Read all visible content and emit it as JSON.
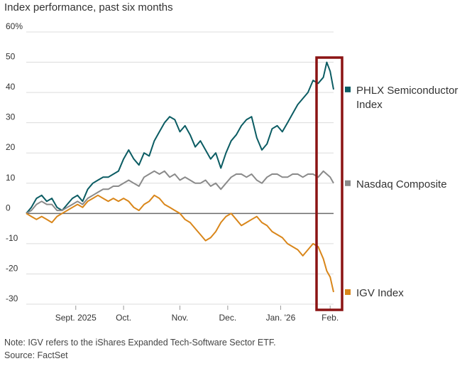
{
  "title": "Index performance, past six months",
  "note": "Note: IGV refers to the iShares Expanded Tech-Software Sector ETF.",
  "source": "Source: FactSet",
  "colors": {
    "semis": "#0b5c63",
    "nasdaq": "#8a8a8a",
    "igv": "#d9861a",
    "zero_line": "#6b6b6b",
    "gridline": "#dcdcdc",
    "highlight_box": "#8b1414"
  },
  "chart_data": {
    "type": "line",
    "ylim": [
      -30,
      60
    ],
    "yticks": [
      60,
      50,
      40,
      30,
      20,
      10,
      0,
      -10,
      -20,
      -30
    ],
    "ytick_labels": [
      "60%",
      "50",
      "40",
      "30",
      "20",
      "10",
      "0",
      "-10",
      "-20",
      "-30"
    ],
    "xlim": [
      0,
      180
    ],
    "xticks": [
      {
        "x": 29,
        "label": "Sept. 2025"
      },
      {
        "x": 57,
        "label": "Oct."
      },
      {
        "x": 90,
        "label": "Nov."
      },
      {
        "x": 118,
        "label": "Dec."
      },
      {
        "x": 149,
        "label": "Jan. '26"
      },
      {
        "x": 178,
        "label": "Feb."
      }
    ],
    "grid": "horizontal",
    "legend": "right, labels at series ends",
    "series": [
      {
        "name": "PHLX Semiconductor Index",
        "label_lines": [
          "PHLX Semiconductor",
          "Index"
        ],
        "color_key": "semis",
        "points": [
          [
            0,
            0
          ],
          [
            3,
            2
          ],
          [
            6,
            5
          ],
          [
            9,
            6
          ],
          [
            12,
            4
          ],
          [
            15,
            5
          ],
          [
            18,
            2
          ],
          [
            21,
            1
          ],
          [
            24,
            3
          ],
          [
            27,
            5
          ],
          [
            30,
            6
          ],
          [
            33,
            4
          ],
          [
            36,
            8
          ],
          [
            39,
            10
          ],
          [
            42,
            11
          ],
          [
            45,
            12
          ],
          [
            48,
            12
          ],
          [
            51,
            13
          ],
          [
            54,
            14
          ],
          [
            57,
            18
          ],
          [
            60,
            21
          ],
          [
            63,
            18
          ],
          [
            66,
            16
          ],
          [
            69,
            20
          ],
          [
            72,
            19
          ],
          [
            75,
            24
          ],
          [
            78,
            27
          ],
          [
            81,
            30
          ],
          [
            84,
            32
          ],
          [
            87,
            31
          ],
          [
            90,
            27
          ],
          [
            93,
            29
          ],
          [
            96,
            26
          ],
          [
            99,
            22
          ],
          [
            102,
            24
          ],
          [
            105,
            21
          ],
          [
            108,
            18
          ],
          [
            111,
            20
          ],
          [
            114,
            15
          ],
          [
            117,
            20
          ],
          [
            120,
            24
          ],
          [
            123,
            26
          ],
          [
            126,
            29
          ],
          [
            129,
            31
          ],
          [
            132,
            32
          ],
          [
            135,
            25
          ],
          [
            138,
            21
          ],
          [
            141,
            23
          ],
          [
            144,
            28
          ],
          [
            147,
            29
          ],
          [
            150,
            27
          ],
          [
            153,
            30
          ],
          [
            156,
            33
          ],
          [
            159,
            36
          ],
          [
            162,
            38
          ],
          [
            165,
            40
          ],
          [
            168,
            44
          ],
          [
            171,
            43
          ],
          [
            174,
            45
          ],
          [
            176,
            50
          ],
          [
            178,
            47
          ],
          [
            180,
            41
          ]
        ]
      },
      {
        "name": "Nasdaq Composite",
        "label_lines": [
          "Nasdaq Composite"
        ],
        "color_key": "nasdaq",
        "points": [
          [
            0,
            0
          ],
          [
            3,
            1
          ],
          [
            6,
            3
          ],
          [
            9,
            4
          ],
          [
            12,
            3
          ],
          [
            15,
            3
          ],
          [
            18,
            1
          ],
          [
            21,
            1
          ],
          [
            24,
            2
          ],
          [
            27,
            3
          ],
          [
            30,
            4
          ],
          [
            33,
            3
          ],
          [
            36,
            5
          ],
          [
            39,
            6
          ],
          [
            42,
            7
          ],
          [
            45,
            8
          ],
          [
            48,
            8
          ],
          [
            51,
            9
          ],
          [
            54,
            9
          ],
          [
            57,
            10
          ],
          [
            60,
            11
          ],
          [
            63,
            10
          ],
          [
            66,
            9
          ],
          [
            69,
            12
          ],
          [
            72,
            13
          ],
          [
            75,
            14
          ],
          [
            78,
            13
          ],
          [
            81,
            14
          ],
          [
            84,
            12
          ],
          [
            87,
            13
          ],
          [
            90,
            11
          ],
          [
            93,
            12
          ],
          [
            96,
            11
          ],
          [
            99,
            10
          ],
          [
            102,
            10
          ],
          [
            105,
            11
          ],
          [
            108,
            9
          ],
          [
            111,
            10
          ],
          [
            114,
            8
          ],
          [
            117,
            10
          ],
          [
            120,
            12
          ],
          [
            123,
            13
          ],
          [
            126,
            13
          ],
          [
            129,
            12
          ],
          [
            132,
            13
          ],
          [
            135,
            11
          ],
          [
            138,
            10
          ],
          [
            141,
            12
          ],
          [
            144,
            13
          ],
          [
            147,
            13
          ],
          [
            150,
            12
          ],
          [
            153,
            12
          ],
          [
            156,
            13
          ],
          [
            159,
            13
          ],
          [
            162,
            12
          ],
          [
            165,
            13
          ],
          [
            168,
            13
          ],
          [
            171,
            12
          ],
          [
            174,
            14
          ],
          [
            176,
            13
          ],
          [
            178,
            12
          ],
          [
            180,
            10
          ]
        ]
      },
      {
        "name": "IGV Index",
        "label_lines": [
          "IGV Index"
        ],
        "color_key": "igv",
        "points": [
          [
            0,
            0
          ],
          [
            3,
            -1
          ],
          [
            6,
            -2
          ],
          [
            9,
            -1
          ],
          [
            12,
            -2
          ],
          [
            15,
            -3
          ],
          [
            18,
            -1
          ],
          [
            21,
            0
          ],
          [
            24,
            1
          ],
          [
            27,
            2
          ],
          [
            30,
            3
          ],
          [
            33,
            2
          ],
          [
            36,
            4
          ],
          [
            39,
            5
          ],
          [
            42,
            6
          ],
          [
            45,
            5
          ],
          [
            48,
            4
          ],
          [
            51,
            5
          ],
          [
            54,
            4
          ],
          [
            57,
            5
          ],
          [
            60,
            4
          ],
          [
            63,
            2
          ],
          [
            66,
            1
          ],
          [
            69,
            3
          ],
          [
            72,
            4
          ],
          [
            75,
            6
          ],
          [
            78,
            5
          ],
          [
            81,
            3
          ],
          [
            84,
            2
          ],
          [
            87,
            1
          ],
          [
            90,
            0
          ],
          [
            93,
            -2
          ],
          [
            96,
            -3
          ],
          [
            99,
            -5
          ],
          [
            102,
            -7
          ],
          [
            105,
            -9
          ],
          [
            108,
            -8
          ],
          [
            111,
            -6
          ],
          [
            114,
            -3
          ],
          [
            117,
            -1
          ],
          [
            120,
            0
          ],
          [
            123,
            -2
          ],
          [
            126,
            -4
          ],
          [
            129,
            -3
          ],
          [
            132,
            -2
          ],
          [
            135,
            -1
          ],
          [
            138,
            -3
          ],
          [
            141,
            -4
          ],
          [
            144,
            -6
          ],
          [
            147,
            -7
          ],
          [
            150,
            -8
          ],
          [
            153,
            -10
          ],
          [
            156,
            -11
          ],
          [
            159,
            -12
          ],
          [
            162,
            -14
          ],
          [
            165,
            -12
          ],
          [
            168,
            -10
          ],
          [
            171,
            -11
          ],
          [
            174,
            -15
          ],
          [
            176,
            -19
          ],
          [
            178,
            -21
          ],
          [
            180,
            -26
          ]
        ]
      }
    ]
  }
}
